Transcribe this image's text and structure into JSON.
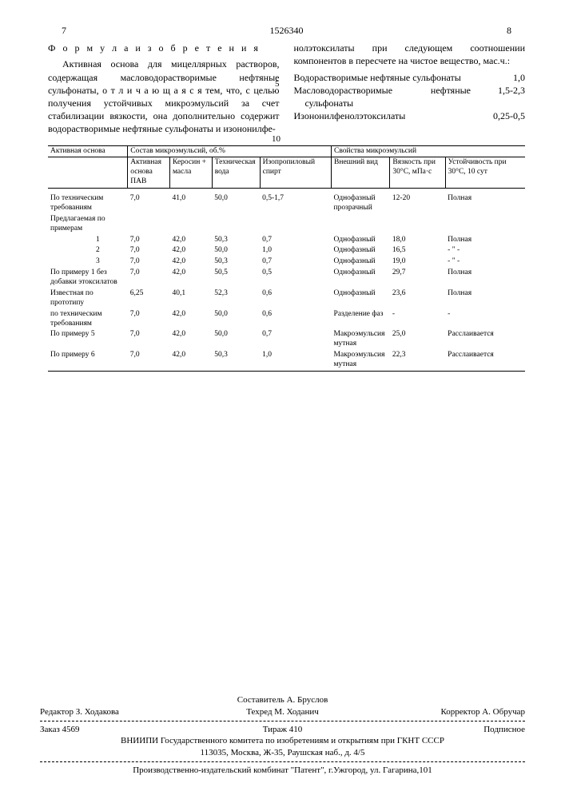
{
  "header": {
    "left_page": "7",
    "patent_number": "1526340",
    "right_page": "8"
  },
  "left_col": {
    "formula_heading": "Ф о р м у л а  и з о б р е т е н и я",
    "para": "Активная основа для мицеллярных растворов, содержащая масловодорастворимые нефтяные сульфонаты, о т л и ч а ю щ а я с я  тем, что, с целью получения устойчивых микроэмульсий за счет стабилизации вязкости, она дополнительно содержит водорастворимые нефтяные сульфонаты и изононилфе-"
  },
  "right_col": {
    "para": "нолэтоксилаты при следующем соотношении компонентов в пересчете на чистое вещество, мас.ч.:",
    "ratios": [
      {
        "label": "Водорастворимые нефтяные сульфонаты",
        "value": "1,0"
      },
      {
        "label": "Масловодорастворимые нефтяные сульфонаты",
        "value": "1,5-2,3"
      },
      {
        "label": "Изононилфенолэтоксилаты",
        "value": "0,25-0,5"
      }
    ]
  },
  "line_nums": {
    "l5": "5",
    "l10": "10"
  },
  "table": {
    "top_headers": {
      "left": "Активная основа",
      "mid": "Состав микроэмульсий, об.%",
      "right": "Свойства микроэмульсий"
    },
    "sub_headers": {
      "c1": "Активная основа ПАВ",
      "c2": "Керосин + масла",
      "c3": "Техническая вода",
      "c4": "Изопропиловый спирт",
      "c5": "Внешний вид",
      "c6": "Вязкость при 30°С, мПа·с",
      "c7": "Устойчивость при 30°С, 10 сут"
    },
    "rows": [
      {
        "label": "По техническим требованиям",
        "c1": "7,0",
        "c2": "41,0",
        "c3": "50,0",
        "c4": "0,5-1,7",
        "c5": "Однофазный прозрачный",
        "c6": "12-20",
        "c7": "Полная"
      },
      {
        "label": "Предлагаемая по примерам",
        "c1": "",
        "c2": "",
        "c3": "",
        "c4": "",
        "c5": "",
        "c6": "",
        "c7": ""
      },
      {
        "label": "1",
        "indent": true,
        "c1": "7,0",
        "c2": "42,0",
        "c3": "50,3",
        "c4": "0,7",
        "c5": "Однофазный",
        "c6": "18,0",
        "c7": "Полная"
      },
      {
        "label": "2",
        "indent": true,
        "c1": "7,0",
        "c2": "42,0",
        "c3": "50,0",
        "c4": "1,0",
        "c5": "Однофазный",
        "c6": "16,5",
        "c7": "- \" -"
      },
      {
        "label": "3",
        "indent": true,
        "c1": "7,0",
        "c2": "42,0",
        "c3": "50,3",
        "c4": "0,7",
        "c5": "Однофазный",
        "c6": "19,0",
        "c7": "- \" -"
      },
      {
        "label": "По примеру 1 без добавки этоксилатов",
        "c1": "7,0",
        "c2": "42,0",
        "c3": "50,5",
        "c4": "0,5",
        "c5": "Однофазный",
        "c6": "29,7",
        "c7": "Полная"
      },
      {
        "label": "Известная по прототипу",
        "c1": "6,25",
        "c2": "40,1",
        "c3": "52,3",
        "c4": "0,6",
        "c5": "Однофазный",
        "c6": "23,6",
        "c7": "Полная"
      },
      {
        "label": "по техническим требованиям",
        "c1": "7,0",
        "c2": "42,0",
        "c3": "50,0",
        "c4": "0,6",
        "c5": "Разделение фаз",
        "c6": "-",
        "c7": "-"
      },
      {
        "label": "По примеру 5",
        "c1": "7,0",
        "c2": "42,0",
        "c3": "50,0",
        "c4": "0,7",
        "c5": "Макроэмульсия мутная",
        "c6": "25,0",
        "c7": "Расслаивается"
      },
      {
        "label": "По примеру 6",
        "c1": "7,0",
        "c2": "42,0",
        "c3": "50,3",
        "c4": "1,0",
        "c5": "Макроэмульсия мутная",
        "c6": "22,3",
        "c7": "Расслаивается"
      }
    ]
  },
  "footer": {
    "composer": "Составитель А. Бруслов",
    "editor": "Редактор З. Ходакова",
    "techred": "Техред М. Ходанич",
    "corrector": "Корректор А. Обручар",
    "order": "Заказ 4569",
    "tirazh": "Тираж 410",
    "subscr": "Подписное",
    "org": "ВНИИПИ Государственного комитета по изобретениям и открытиям при ГКНТ СССР",
    "addr": "113035, Москва, Ж-35, Раушская наб., д. 4/5",
    "printer": "Производственно-издательский комбинат \"Патент\", г.Ужгород, ул. Гагарина,101"
  }
}
